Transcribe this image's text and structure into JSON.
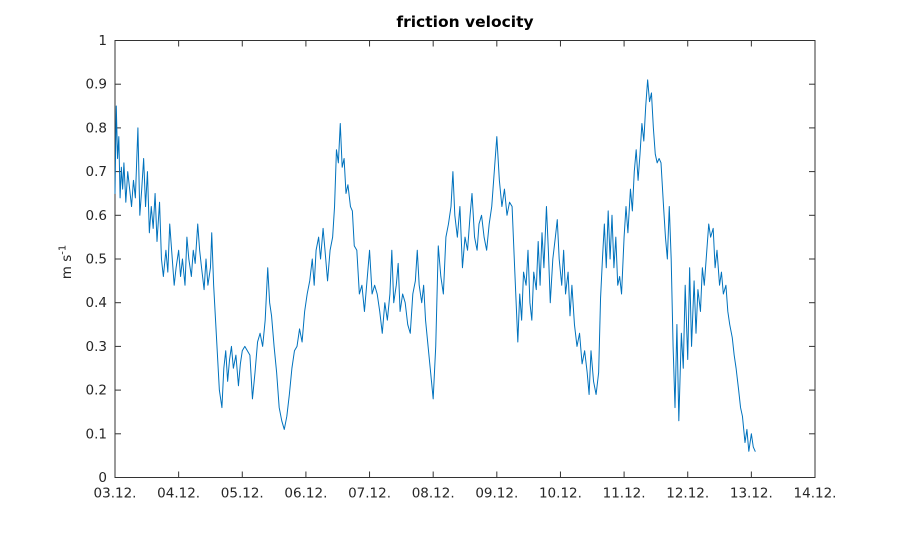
{
  "chart_data": {
    "type": "line",
    "title": "friction velocity",
    "ylabel_base": "m s",
    "ylabel_exponent": "-1",
    "xlabel": "",
    "legend": "none",
    "grid": false,
    "box": true,
    "line_color": "#0072BD",
    "axis_color": "#333333",
    "background_color": "#ffffff",
    "ylim": [
      0,
      1
    ],
    "xlim_days": [
      3,
      14
    ],
    "y_ticks": [
      0,
      0.1,
      0.2,
      0.3,
      0.4,
      0.5,
      0.6,
      0.7,
      0.8,
      0.9,
      1
    ],
    "y_tick_labels": [
      "0",
      "0.1",
      "0.2",
      "0.3",
      "0.4",
      "0.5",
      "0.6",
      "0.7",
      "0.8",
      "0.9",
      "1"
    ],
    "x_tick_days": [
      3,
      4,
      5,
      6,
      7,
      8,
      9,
      10,
      11,
      12,
      13,
      14
    ],
    "x_tick_labels": [
      "03.12.",
      "04.12.",
      "05.12.",
      "06.12.",
      "07.12.",
      "08.12.",
      "09.12.",
      "10.12.",
      "11.12.",
      "12.12.",
      "13.12.",
      "14.12."
    ],
    "series": [
      {
        "name": "friction velocity",
        "units": "m s-1",
        "points": [
          [
            3.0,
            0.65
          ],
          [
            3.02,
            0.85
          ],
          [
            3.04,
            0.73
          ],
          [
            3.06,
            0.78
          ],
          [
            3.08,
            0.64
          ],
          [
            3.1,
            0.71
          ],
          [
            3.12,
            0.66
          ],
          [
            3.14,
            0.72
          ],
          [
            3.17,
            0.63
          ],
          [
            3.2,
            0.7
          ],
          [
            3.23,
            0.66
          ],
          [
            3.26,
            0.62
          ],
          [
            3.29,
            0.68
          ],
          [
            3.32,
            0.64
          ],
          [
            3.36,
            0.8
          ],
          [
            3.39,
            0.6
          ],
          [
            3.42,
            0.66
          ],
          [
            3.45,
            0.73
          ],
          [
            3.48,
            0.62
          ],
          [
            3.51,
            0.7
          ],
          [
            3.54,
            0.56
          ],
          [
            3.57,
            0.62
          ],
          [
            3.6,
            0.57
          ],
          [
            3.63,
            0.65
          ],
          [
            3.66,
            0.54
          ],
          [
            3.7,
            0.63
          ],
          [
            3.73,
            0.5
          ],
          [
            3.76,
            0.46
          ],
          [
            3.8,
            0.52
          ],
          [
            3.83,
            0.47
          ],
          [
            3.86,
            0.58
          ],
          [
            3.9,
            0.5
          ],
          [
            3.93,
            0.44
          ],
          [
            3.96,
            0.48
          ],
          [
            4.0,
            0.52
          ],
          [
            4.03,
            0.46
          ],
          [
            4.06,
            0.5
          ],
          [
            4.1,
            0.44
          ],
          [
            4.13,
            0.55
          ],
          [
            4.16,
            0.5
          ],
          [
            4.2,
            0.46
          ],
          [
            4.23,
            0.52
          ],
          [
            4.26,
            0.49
          ],
          [
            4.3,
            0.58
          ],
          [
            4.33,
            0.52
          ],
          [
            4.36,
            0.48
          ],
          [
            4.4,
            0.43
          ],
          [
            4.43,
            0.5
          ],
          [
            4.46,
            0.44
          ],
          [
            4.5,
            0.48
          ],
          [
            4.52,
            0.56
          ],
          [
            4.55,
            0.44
          ],
          [
            4.58,
            0.36
          ],
          [
            4.61,
            0.28
          ],
          [
            4.64,
            0.2
          ],
          [
            4.68,
            0.16
          ],
          [
            4.71,
            0.25
          ],
          [
            4.74,
            0.29
          ],
          [
            4.77,
            0.22
          ],
          [
            4.8,
            0.27
          ],
          [
            4.83,
            0.3
          ],
          [
            4.86,
            0.25
          ],
          [
            4.9,
            0.28
          ],
          [
            4.94,
            0.21
          ],
          [
            4.97,
            0.26
          ],
          [
            5.0,
            0.29
          ],
          [
            5.04,
            0.3
          ],
          [
            5.08,
            0.29
          ],
          [
            5.12,
            0.28
          ],
          [
            5.16,
            0.18
          ],
          [
            5.2,
            0.24
          ],
          [
            5.24,
            0.31
          ],
          [
            5.28,
            0.33
          ],
          [
            5.32,
            0.3
          ],
          [
            5.36,
            0.36
          ],
          [
            5.4,
            0.48
          ],
          [
            5.43,
            0.4
          ],
          [
            5.46,
            0.37
          ],
          [
            5.5,
            0.3
          ],
          [
            5.54,
            0.24
          ],
          [
            5.58,
            0.16
          ],
          [
            5.62,
            0.13
          ],
          [
            5.66,
            0.11
          ],
          [
            5.7,
            0.14
          ],
          [
            5.74,
            0.19
          ],
          [
            5.78,
            0.25
          ],
          [
            5.82,
            0.29
          ],
          [
            5.86,
            0.3
          ],
          [
            5.9,
            0.34
          ],
          [
            5.94,
            0.31
          ],
          [
            5.98,
            0.38
          ],
          [
            6.02,
            0.42
          ],
          [
            6.06,
            0.45
          ],
          [
            6.1,
            0.5
          ],
          [
            6.13,
            0.44
          ],
          [
            6.16,
            0.52
          ],
          [
            6.2,
            0.55
          ],
          [
            6.23,
            0.5
          ],
          [
            6.27,
            0.57
          ],
          [
            6.3,
            0.52
          ],
          [
            6.34,
            0.45
          ],
          [
            6.38,
            0.52
          ],
          [
            6.42,
            0.55
          ],
          [
            6.45,
            0.62
          ],
          [
            6.48,
            0.75
          ],
          [
            6.51,
            0.72
          ],
          [
            6.54,
            0.81
          ],
          [
            6.57,
            0.71
          ],
          [
            6.6,
            0.73
          ],
          [
            6.63,
            0.65
          ],
          [
            6.66,
            0.67
          ],
          [
            6.7,
            0.62
          ],
          [
            6.73,
            0.61
          ],
          [
            6.76,
            0.53
          ],
          [
            6.8,
            0.52
          ],
          [
            6.84,
            0.42
          ],
          [
            6.88,
            0.44
          ],
          [
            6.92,
            0.38
          ],
          [
            6.96,
            0.45
          ],
          [
            7.0,
            0.52
          ],
          [
            7.04,
            0.42
          ],
          [
            7.08,
            0.44
          ],
          [
            7.12,
            0.42
          ],
          [
            7.16,
            0.38
          ],
          [
            7.2,
            0.33
          ],
          [
            7.24,
            0.4
          ],
          [
            7.28,
            0.36
          ],
          [
            7.32,
            0.42
          ],
          [
            7.35,
            0.52
          ],
          [
            7.38,
            0.4
          ],
          [
            7.42,
            0.44
          ],
          [
            7.45,
            0.49
          ],
          [
            7.48,
            0.38
          ],
          [
            7.52,
            0.42
          ],
          [
            7.56,
            0.4
          ],
          [
            7.6,
            0.35
          ],
          [
            7.64,
            0.33
          ],
          [
            7.68,
            0.42
          ],
          [
            7.72,
            0.45
          ],
          [
            7.75,
            0.52
          ],
          [
            7.78,
            0.44
          ],
          [
            7.82,
            0.4
          ],
          [
            7.85,
            0.44
          ],
          [
            7.88,
            0.36
          ],
          [
            7.92,
            0.3
          ],
          [
            7.96,
            0.24
          ],
          [
            8.0,
            0.18
          ],
          [
            8.04,
            0.3
          ],
          [
            8.08,
            0.53
          ],
          [
            8.12,
            0.46
          ],
          [
            8.16,
            0.42
          ],
          [
            8.2,
            0.55
          ],
          [
            8.24,
            0.58
          ],
          [
            8.28,
            0.62
          ],
          [
            8.31,
            0.7
          ],
          [
            8.34,
            0.6
          ],
          [
            8.38,
            0.55
          ],
          [
            8.42,
            0.62
          ],
          [
            8.46,
            0.48
          ],
          [
            8.5,
            0.55
          ],
          [
            8.54,
            0.52
          ],
          [
            8.58,
            0.6
          ],
          [
            8.61,
            0.65
          ],
          [
            8.65,
            0.55
          ],
          [
            8.69,
            0.52
          ],
          [
            8.72,
            0.58
          ],
          [
            8.76,
            0.6
          ],
          [
            8.8,
            0.55
          ],
          [
            8.84,
            0.52
          ],
          [
            8.88,
            0.58
          ],
          [
            8.92,
            0.62
          ],
          [
            8.96,
            0.7
          ],
          [
            9.0,
            0.78
          ],
          [
            9.04,
            0.68
          ],
          [
            9.08,
            0.62
          ],
          [
            9.12,
            0.66
          ],
          [
            9.16,
            0.6
          ],
          [
            9.2,
            0.63
          ],
          [
            9.24,
            0.62
          ],
          [
            9.28,
            0.48
          ],
          [
            9.33,
            0.31
          ],
          [
            9.36,
            0.42
          ],
          [
            9.39,
            0.36
          ],
          [
            9.42,
            0.47
          ],
          [
            9.46,
            0.44
          ],
          [
            9.49,
            0.52
          ],
          [
            9.52,
            0.4
          ],
          [
            9.55,
            0.36
          ],
          [
            9.58,
            0.47
          ],
          [
            9.62,
            0.43
          ],
          [
            9.65,
            0.54
          ],
          [
            9.68,
            0.44
          ],
          [
            9.71,
            0.56
          ],
          [
            9.74,
            0.48
          ],
          [
            9.78,
            0.62
          ],
          [
            9.81,
            0.52
          ],
          [
            9.84,
            0.4
          ],
          [
            9.88,
            0.5
          ],
          [
            9.92,
            0.55
          ],
          [
            9.95,
            0.59
          ],
          [
            9.98,
            0.5
          ],
          [
            10.02,
            0.44
          ],
          [
            10.05,
            0.52
          ],
          [
            10.08,
            0.42
          ],
          [
            10.12,
            0.47
          ],
          [
            10.15,
            0.37
          ],
          [
            10.18,
            0.44
          ],
          [
            10.22,
            0.35
          ],
          [
            10.26,
            0.3
          ],
          [
            10.3,
            0.33
          ],
          [
            10.34,
            0.26
          ],
          [
            10.38,
            0.29
          ],
          [
            10.42,
            0.24
          ],
          [
            10.45,
            0.19
          ],
          [
            10.48,
            0.29
          ],
          [
            10.52,
            0.22
          ],
          [
            10.56,
            0.19
          ],
          [
            10.6,
            0.24
          ],
          [
            10.63,
            0.41
          ],
          [
            10.66,
            0.5
          ],
          [
            10.69,
            0.58
          ],
          [
            10.72,
            0.48
          ],
          [
            10.75,
            0.61
          ],
          [
            10.78,
            0.5
          ],
          [
            10.81,
            0.6
          ],
          [
            10.84,
            0.48
          ],
          [
            10.87,
            0.55
          ],
          [
            10.9,
            0.44
          ],
          [
            10.93,
            0.46
          ],
          [
            10.96,
            0.42
          ],
          [
            11.0,
            0.55
          ],
          [
            11.03,
            0.62
          ],
          [
            11.06,
            0.56
          ],
          [
            11.1,
            0.66
          ],
          [
            11.13,
            0.61
          ],
          [
            11.16,
            0.7
          ],
          [
            11.19,
            0.75
          ],
          [
            11.22,
            0.68
          ],
          [
            11.25,
            0.74
          ],
          [
            11.28,
            0.81
          ],
          [
            11.31,
            0.77
          ],
          [
            11.34,
            0.85
          ],
          [
            11.37,
            0.91
          ],
          [
            11.4,
            0.86
          ],
          [
            11.43,
            0.88
          ],
          [
            11.46,
            0.8
          ],
          [
            11.49,
            0.74
          ],
          [
            11.52,
            0.72
          ],
          [
            11.55,
            0.73
          ],
          [
            11.58,
            0.72
          ],
          [
            11.62,
            0.62
          ],
          [
            11.65,
            0.55
          ],
          [
            11.68,
            0.5
          ],
          [
            11.71,
            0.62
          ],
          [
            11.74,
            0.5
          ],
          [
            11.77,
            0.3
          ],
          [
            11.8,
            0.16
          ],
          [
            11.83,
            0.35
          ],
          [
            11.86,
            0.13
          ],
          [
            11.9,
            0.33
          ],
          [
            11.93,
            0.25
          ],
          [
            11.96,
            0.44
          ],
          [
            12.0,
            0.27
          ],
          [
            12.03,
            0.48
          ],
          [
            12.06,
            0.3
          ],
          [
            12.1,
            0.45
          ],
          [
            12.13,
            0.33
          ],
          [
            12.16,
            0.43
          ],
          [
            12.2,
            0.38
          ],
          [
            12.23,
            0.48
          ],
          [
            12.26,
            0.44
          ],
          [
            12.3,
            0.52
          ],
          [
            12.33,
            0.58
          ],
          [
            12.36,
            0.55
          ],
          [
            12.4,
            0.57
          ],
          [
            12.43,
            0.48
          ],
          [
            12.46,
            0.52
          ],
          [
            12.5,
            0.44
          ],
          [
            12.53,
            0.47
          ],
          [
            12.56,
            0.42
          ],
          [
            12.6,
            0.44
          ],
          [
            12.63,
            0.38
          ],
          [
            12.66,
            0.35
          ],
          [
            12.7,
            0.32
          ],
          [
            12.73,
            0.28
          ],
          [
            12.76,
            0.25
          ],
          [
            12.8,
            0.2
          ],
          [
            12.83,
            0.16
          ],
          [
            12.86,
            0.14
          ],
          [
            12.9,
            0.08
          ],
          [
            12.93,
            0.11
          ],
          [
            12.96,
            0.06
          ],
          [
            13.0,
            0.1
          ],
          [
            13.03,
            0.07
          ],
          [
            13.06,
            0.06
          ]
        ]
      }
    ]
  }
}
